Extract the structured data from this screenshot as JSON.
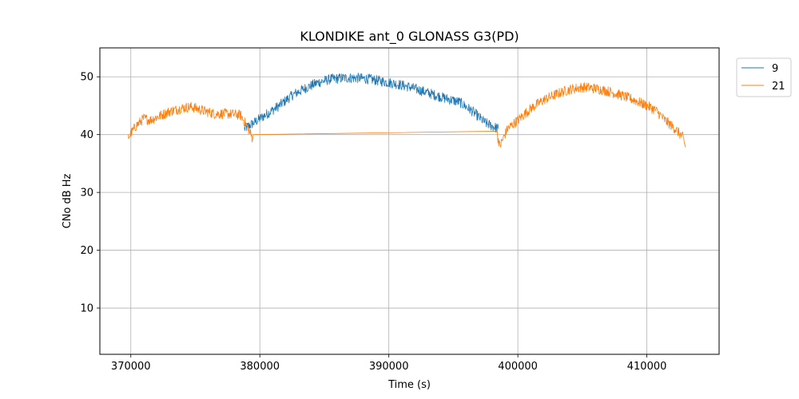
{
  "chart_data": {
    "type": "line",
    "title": "KLONDIKE ant_0 GLONASS G3(PD)",
    "xlabel": "Time (s)",
    "ylabel": "CNo dB Hz",
    "xlim": [
      367600,
      415600
    ],
    "ylim": [
      2,
      55
    ],
    "xticks": [
      370000,
      380000,
      390000,
      400000,
      410000
    ],
    "xtick_labels": [
      "370000",
      "380000",
      "390000",
      "400000",
      "410000"
    ],
    "yticks": [
      10,
      20,
      30,
      40,
      50
    ],
    "ytick_labels": [
      "10",
      "20",
      "30",
      "40",
      "50"
    ],
    "grid": true,
    "legend_position": "outside top-right",
    "series": [
      {
        "name": "9",
        "color": "#1f77b4",
        "noise": 0.9,
        "x": [
          378800,
          379500,
          380500,
          381500,
          382500,
          383500,
          384500,
          385500,
          386500,
          387500,
          388500,
          389500,
          390500,
          391500,
          392500,
          393500,
          394500,
          395500,
          396500,
          397500,
          398500
        ],
        "y": [
          41.0,
          42.0,
          43.5,
          45.0,
          46.8,
          48.0,
          49.0,
          49.6,
          49.8,
          49.8,
          49.6,
          49.2,
          48.8,
          48.3,
          47.6,
          46.9,
          46.2,
          45.6,
          44.0,
          42.0,
          41.0
        ]
      },
      {
        "name": "21",
        "color": "#ff7f0e",
        "noise": 0.9,
        "x": [
          369800,
          370400,
          371000,
          371500,
          372000,
          373000,
          374000,
          374700,
          375500,
          376500,
          377500,
          378500,
          379000,
          379400,
          379500,
          398400,
          398600,
          399200,
          400000,
          401000,
          402000,
          403000,
          404000,
          405000,
          406000,
          407000,
          408000,
          409000,
          410000,
          410700,
          411400,
          412200,
          412800,
          413000
        ],
        "y": [
          39.5,
          41.5,
          42.8,
          42.5,
          43.0,
          44.0,
          44.6,
          44.8,
          44.2,
          43.6,
          43.6,
          43.4,
          41.5,
          39.5,
          40.0,
          40.0,
          38.0,
          41.0,
          42.5,
          44.5,
          46.0,
          47.0,
          47.8,
          48.2,
          48.0,
          47.5,
          46.8,
          46.0,
          45.0,
          44.2,
          42.5,
          41.0,
          39.5,
          37.8
        ]
      }
    ]
  }
}
